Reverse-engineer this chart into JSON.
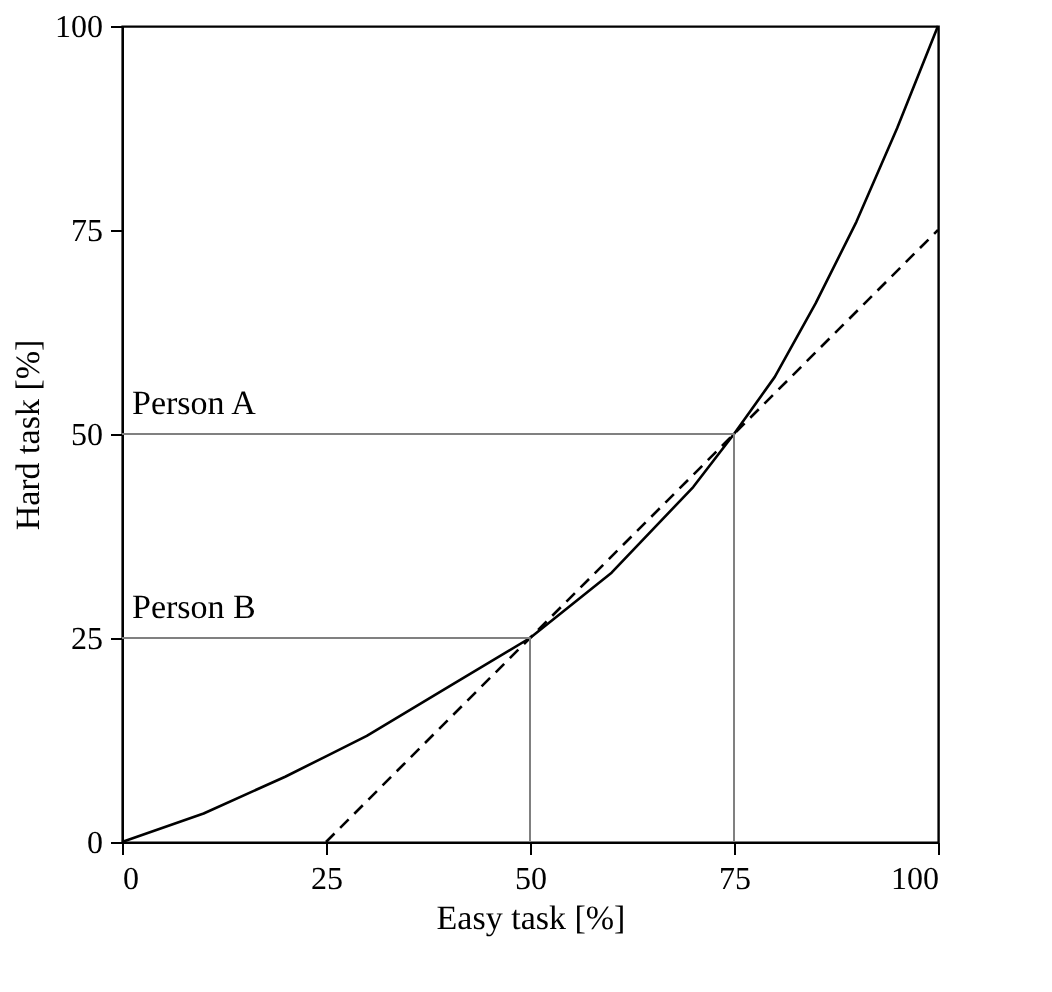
{
  "chart_data": {
    "type": "line",
    "xlabel": "Easy task [%]",
    "ylabel": "Hard task [%]",
    "xlim": [
      0,
      100
    ],
    "ylim": [
      0,
      100
    ],
    "xticks": [
      0,
      25,
      50,
      75,
      100
    ],
    "yticks": [
      0,
      25,
      50,
      75,
      100
    ],
    "grid": false,
    "series": [
      {
        "color": "#000000",
        "line_style": "solid",
        "x": [
          0,
          10,
          20,
          25,
          30,
          40,
          50,
          60,
          70,
          75,
          80,
          85,
          90,
          95,
          100
        ],
        "values": [
          0,
          3.5,
          8,
          10.5,
          13,
          19,
          25,
          33,
          43.5,
          50,
          57,
          66,
          76,
          87.5,
          100
        ]
      },
      {
        "color": "#000000",
        "line_style": "dashed",
        "x": [
          25,
          100
        ],
        "values": [
          0,
          75
        ]
      },
      {
        "color": "#808080",
        "line_style": "solid",
        "x": [
          0,
          75,
          75
        ],
        "values": [
          50,
          50,
          0
        ]
      },
      {
        "color": "#808080",
        "line_style": "solid",
        "x": [
          0,
          50,
          50
        ],
        "values": [
          25,
          25,
          0
        ]
      }
    ],
    "annotations": [
      {
        "text": "Person A",
        "x": 0,
        "y": 50
      },
      {
        "text": "Person B",
        "x": 0,
        "y": 25
      }
    ]
  }
}
